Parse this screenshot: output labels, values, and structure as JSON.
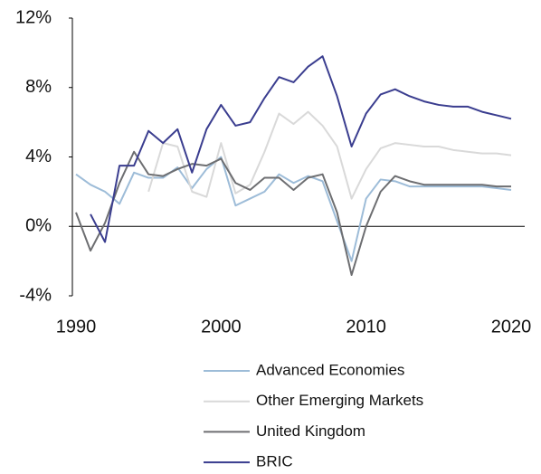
{
  "chart_data": {
    "type": "line",
    "x": [
      1990,
      1991,
      1992,
      1993,
      1994,
      1995,
      1996,
      1997,
      1998,
      1999,
      2000,
      2001,
      2002,
      2003,
      2004,
      2005,
      2006,
      2007,
      2008,
      2009,
      2010,
      2011,
      2012,
      2013,
      2014,
      2015,
      2016,
      2017,
      2018,
      2019,
      2020
    ],
    "xlim": [
      1990,
      2020
    ],
    "xticks": [
      1990,
      2000,
      2010,
      2020
    ],
    "ylim": [
      -4,
      12
    ],
    "yticks": [
      {
        "value": -4,
        "label": "-4%"
      },
      {
        "value": 0,
        "label": "0%"
      },
      {
        "value": 4,
        "label": "4%"
      },
      {
        "value": 8,
        "label": "8%"
      },
      {
        "value": 12,
        "label": "12%"
      }
    ],
    "series": [
      {
        "name": "Advanced Economies",
        "color": "#9dbcd8",
        "values": [
          3.0,
          2.4,
          2.0,
          1.3,
          3.1,
          2.8,
          2.8,
          3.4,
          2.2,
          3.3,
          4.0,
          1.2,
          1.6,
          2.0,
          3.0,
          2.5,
          2.9,
          2.6,
          0.3,
          -2.0,
          1.6,
          2.7,
          2.6,
          2.3,
          2.3,
          2.3,
          2.3,
          2.3,
          2.3,
          2.2,
          2.1
        ]
      },
      {
        "name": "Other Emerging Markets",
        "color": "#d9d9d9",
        "values": [
          null,
          null,
          null,
          null,
          null,
          2.0,
          4.8,
          4.6,
          2.0,
          1.7,
          4.8,
          1.9,
          2.4,
          4.3,
          6.5,
          5.9,
          6.6,
          5.8,
          4.6,
          1.6,
          3.3,
          4.5,
          4.8,
          4.7,
          4.6,
          4.6,
          4.4,
          4.3,
          4.2,
          4.2,
          4.1
        ]
      },
      {
        "name": "United Kingdom",
        "color": "#6d6e71",
        "values": [
          0.8,
          -1.4,
          0.2,
          2.5,
          4.3,
          3.0,
          2.9,
          3.3,
          3.6,
          3.5,
          3.9,
          2.5,
          2.1,
          2.8,
          2.8,
          2.1,
          2.8,
          3.0,
          0.8,
          -2.8,
          0.0,
          2.0,
          2.9,
          2.6,
          2.4,
          2.4,
          2.4,
          2.4,
          2.4,
          2.3,
          2.3
        ]
      },
      {
        "name": "BRIC",
        "color": "#3a3d8f",
        "values": [
          null,
          0.7,
          -0.9,
          3.5,
          3.5,
          5.5,
          4.8,
          5.6,
          3.1,
          5.6,
          7.0,
          5.8,
          6.0,
          7.4,
          8.6,
          8.3,
          9.2,
          9.8,
          7.5,
          4.6,
          6.5,
          7.6,
          7.9,
          7.5,
          7.2,
          7.0,
          6.9,
          6.9,
          6.6,
          6.4,
          6.2
        ]
      }
    ]
  }
}
